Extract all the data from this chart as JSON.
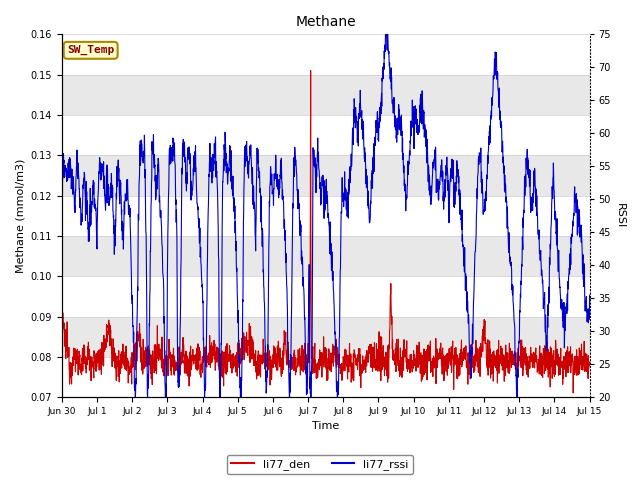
{
  "title": "Methane",
  "ylabel_left": "Methane (mmol/m3)",
  "ylabel_right": "RSSI",
  "xlabel": "Time",
  "ylim_left": [
    0.07,
    0.16
  ],
  "ylim_right": [
    20,
    75
  ],
  "yticks_left": [
    0.07,
    0.08,
    0.09,
    0.1,
    0.11,
    0.12,
    0.13,
    0.14,
    0.15,
    0.16
  ],
  "yticks_right": [
    20,
    25,
    30,
    35,
    40,
    45,
    50,
    55,
    60,
    65,
    70,
    75
  ],
  "xtick_labels": [
    "Jun 30",
    "Jul 1",
    "Jul 2",
    "Jul 3",
    "Jul 4",
    "Jul 5",
    "Jul 6",
    "Jul 7",
    "Jul 8",
    "Jul 9",
    "Jul 10",
    "Jul 11",
    "Jul 12",
    "Jul 13",
    "Jul 14",
    "Jul 15"
  ],
  "color_den": "#cc0000",
  "color_rssi": "#0000cc",
  "legend_label_den": "li77_den",
  "legend_label_rssi": "li77_rssi",
  "sw_temp_label": "SW_Temp",
  "sw_temp_bg": "#ffffcc",
  "sw_temp_border": "#aa8800",
  "sw_temp_text_color": "#880000",
  "background_color": "#ffffff",
  "band_color": "#e8e8e8",
  "n_days": 15,
  "pts_per_day": 144
}
